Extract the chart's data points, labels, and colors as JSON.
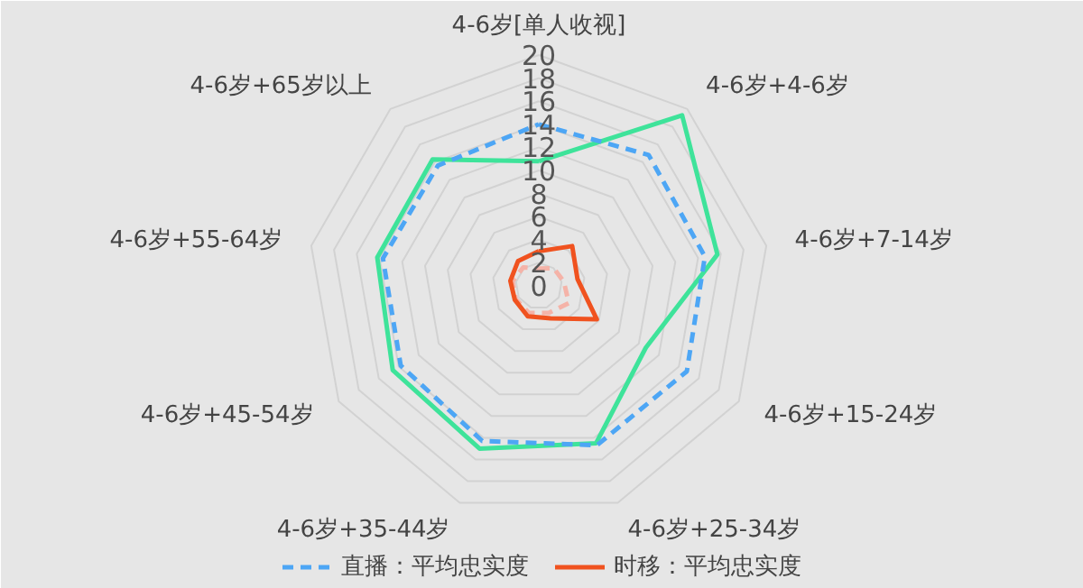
{
  "chart_data": {
    "type": "radar",
    "categories": [
      "4-6岁[单人收视]",
      "4-6岁+4-6岁",
      "4-6岁+7-14岁",
      "4-6岁+15-24岁",
      "4-6岁+25-34岁",
      "4-6岁+35-44岁",
      "4-6岁+45-54岁",
      "4-6岁+55-64岁",
      "4-6岁+65岁以上"
    ],
    "series": [
      {
        "color": "#3ee39a",
        "values": [
          10.8,
          19.3,
          15.7,
          10.7,
          14.5,
          15.0,
          14.6,
          14.2,
          14.3
        ],
        "line_style": "solid"
      },
      {
        "name": "直播：平均忠实度",
        "color": "#4da6f5",
        "values": [
          14.0,
          14.8,
          14.6,
          14.8,
          14.7,
          14.3,
          13.8,
          13.7,
          13.6
        ],
        "line_style": "dashed"
      },
      {
        "color": "#f5b3a8",
        "values": [
          1.5,
          2.0,
          2.2,
          3.0,
          2.5,
          2.5,
          2.3,
          2.3,
          2.1
        ],
        "line_style": "dashed"
      },
      {
        "name": "时移：平均忠实度",
        "color": "#f0521f",
        "values": [
          3.0,
          4.5,
          3.4,
          5.8,
          3.0,
          2.8,
          2.4,
          2.5,
          2.8
        ],
        "line_style": "solid"
      }
    ],
    "ylim": [
      0,
      20
    ],
    "yticks": [
      0,
      2,
      4,
      6,
      8,
      10,
      12,
      14,
      16,
      18,
      20
    ],
    "grid": true,
    "legend": "bottom",
    "marker": "none"
  }
}
